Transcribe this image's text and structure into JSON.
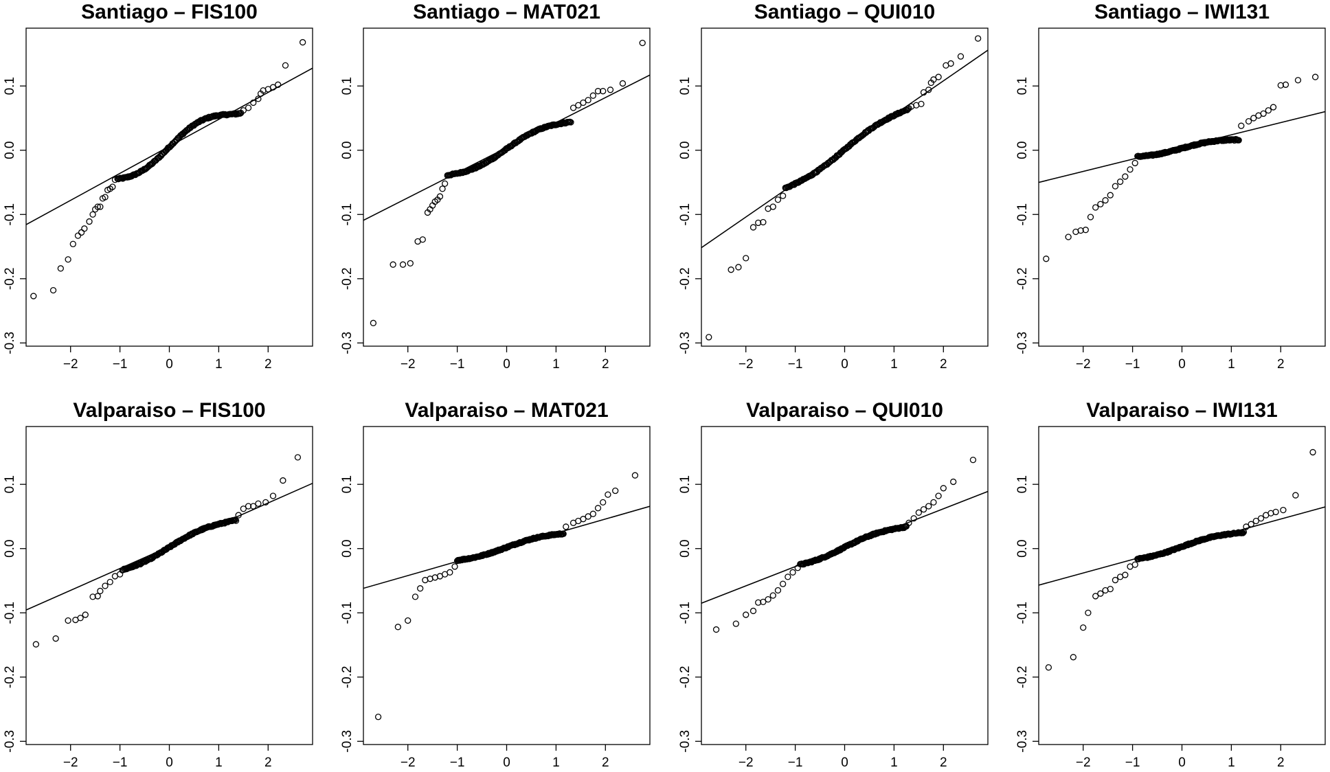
{
  "chart_data": {
    "type": "scatter",
    "layout": {
      "rows": 2,
      "cols": 4
    },
    "shared_axes": {
      "xlim": [
        -2.9,
        2.9
      ],
      "ylim": [
        -0.305,
        0.19
      ],
      "x_ticks": [
        -2,
        -1,
        0,
        1,
        2
      ],
      "x_tick_labels": [
        "−2",
        "−1",
        "0",
        "1",
        "2"
      ],
      "y_ticks": [
        0.1,
        0.0,
        -0.1,
        -0.2,
        -0.3
      ],
      "y_tick_labels": [
        "0.1",
        "0.0",
        "-0.1",
        "-0.2",
        "-0.3"
      ],
      "grid": false,
      "legend": "none"
    },
    "panels": [
      {
        "title": "Santiago – FIS100",
        "line": {
          "intercept": 0.006,
          "slope": 0.042
        },
        "low_tail": [
          [
            -2.75,
            -0.227
          ],
          [
            -2.35,
            -0.218
          ],
          [
            -2.2,
            -0.184
          ],
          [
            -2.05,
            -0.17
          ],
          [
            -1.95,
            -0.146
          ],
          [
            -1.85,
            -0.133
          ],
          [
            -1.78,
            -0.128
          ],
          [
            -1.72,
            -0.122
          ],
          [
            -1.62,
            -0.111
          ],
          [
            -1.55,
            -0.1
          ],
          [
            -1.5,
            -0.092
          ],
          [
            -1.45,
            -0.088
          ],
          [
            -1.4,
            -0.088
          ],
          [
            -1.35,
            -0.075
          ],
          [
            -1.3,
            -0.073
          ],
          [
            -1.25,
            -0.062
          ],
          [
            -1.2,
            -0.06
          ],
          [
            -1.15,
            -0.057
          ],
          [
            -1.1,
            -0.046
          ]
        ],
        "high_tail": [
          [
            1.5,
            0.062
          ],
          [
            1.6,
            0.066
          ],
          [
            1.7,
            0.074
          ],
          [
            1.8,
            0.08
          ],
          [
            1.85,
            0.088
          ],
          [
            1.9,
            0.093
          ],
          [
            2.0,
            0.095
          ],
          [
            2.1,
            0.098
          ],
          [
            2.2,
            0.102
          ],
          [
            2.35,
            0.132
          ],
          [
            2.7,
            0.168
          ]
        ],
        "core": {
          "x_from": -1.05,
          "x_to": 1.45,
          "slope": 0.042,
          "intercept": 0.005,
          "wave": 0.014
        }
      },
      {
        "title": "Santiago – MAT021",
        "line": {
          "intercept": 0.004,
          "slope": 0.039
        },
        "low_tail": [
          [
            -2.7,
            -0.269
          ],
          [
            -2.3,
            -0.178
          ],
          [
            -2.1,
            -0.178
          ],
          [
            -1.95,
            -0.176
          ],
          [
            -1.8,
            -0.142
          ],
          [
            -1.7,
            -0.139
          ],
          [
            -1.6,
            -0.097
          ],
          [
            -1.55,
            -0.092
          ],
          [
            -1.5,
            -0.086
          ],
          [
            -1.45,
            -0.08
          ],
          [
            -1.4,
            -0.077
          ],
          [
            -1.35,
            -0.072
          ],
          [
            -1.3,
            -0.06
          ],
          [
            -1.25,
            -0.052
          ]
        ],
        "high_tail": [
          [
            1.35,
            0.066
          ],
          [
            1.45,
            0.07
          ],
          [
            1.55,
            0.074
          ],
          [
            1.65,
            0.078
          ],
          [
            1.75,
            0.085
          ],
          [
            1.85,
            0.092
          ],
          [
            1.95,
            0.092
          ],
          [
            2.1,
            0.094
          ],
          [
            2.35,
            0.104
          ],
          [
            2.75,
            0.167
          ]
        ],
        "core": {
          "x_from": -1.2,
          "x_to": 1.3,
          "slope": 0.034,
          "intercept": 0.002,
          "wave": 0.008
        }
      },
      {
        "title": "Santiago – QUI010",
        "line": {
          "intercept": 0.002,
          "slope": 0.053
        },
        "low_tail": [
          [
            -2.75,
            -0.291
          ],
          [
            -2.3,
            -0.186
          ],
          [
            -2.15,
            -0.182
          ],
          [
            -2.0,
            -0.168
          ],
          [
            -1.85,
            -0.12
          ],
          [
            -1.75,
            -0.113
          ],
          [
            -1.65,
            -0.112
          ],
          [
            -1.55,
            -0.091
          ],
          [
            -1.45,
            -0.088
          ],
          [
            -1.35,
            -0.077
          ],
          [
            -1.25,
            -0.071
          ]
        ],
        "high_tail": [
          [
            1.35,
            0.068
          ],
          [
            1.45,
            0.07
          ],
          [
            1.55,
            0.072
          ],
          [
            1.6,
            0.09
          ],
          [
            1.7,
            0.094
          ],
          [
            1.75,
            0.105
          ],
          [
            1.8,
            0.11
          ],
          [
            1.9,
            0.114
          ],
          [
            2.05,
            0.132
          ],
          [
            2.15,
            0.135
          ],
          [
            2.35,
            0.146
          ],
          [
            2.7,
            0.174
          ]
        ],
        "core": {
          "x_from": -1.2,
          "x_to": 1.3,
          "slope": 0.05,
          "intercept": 0.001,
          "wave": 0.006
        }
      },
      {
        "title": "Santiago – IWI131",
        "line": {
          "intercept": 0.005,
          "slope": 0.019
        },
        "low_tail": [
          [
            -2.75,
            -0.169
          ],
          [
            -2.3,
            -0.135
          ],
          [
            -2.15,
            -0.127
          ],
          [
            -2.05,
            -0.125
          ],
          [
            -1.95,
            -0.124
          ],
          [
            -1.85,
            -0.104
          ],
          [
            -1.75,
            -0.089
          ],
          [
            -1.65,
            -0.084
          ],
          [
            -1.55,
            -0.078
          ],
          [
            -1.45,
            -0.07
          ],
          [
            -1.35,
            -0.056
          ],
          [
            -1.25,
            -0.049
          ],
          [
            -1.15,
            -0.041
          ],
          [
            -1.05,
            -0.03
          ],
          [
            -0.95,
            -0.02
          ]
        ],
        "high_tail": [
          [
            1.2,
            0.038
          ],
          [
            1.35,
            0.045
          ],
          [
            1.45,
            0.05
          ],
          [
            1.55,
            0.054
          ],
          [
            1.65,
            0.057
          ],
          [
            1.75,
            0.062
          ],
          [
            1.85,
            0.067
          ],
          [
            2.0,
            0.101
          ],
          [
            2.1,
            0.102
          ],
          [
            2.35,
            0.109
          ],
          [
            2.7,
            0.114
          ]
        ],
        "core": {
          "x_from": -0.9,
          "x_to": 1.15,
          "slope": 0.011,
          "intercept": 0.003,
          "wave": 0.004
        }
      },
      {
        "title": "Valparaiso – FIS100",
        "line": {
          "intercept": 0.003,
          "slope": 0.034
        },
        "low_tail": [
          [
            -2.7,
            -0.149
          ],
          [
            -2.3,
            -0.14
          ],
          [
            -2.05,
            -0.112
          ],
          [
            -1.9,
            -0.111
          ],
          [
            -1.8,
            -0.108
          ],
          [
            -1.7,
            -0.103
          ],
          [
            -1.55,
            -0.075
          ],
          [
            -1.45,
            -0.074
          ],
          [
            -1.4,
            -0.066
          ],
          [
            -1.3,
            -0.058
          ],
          [
            -1.2,
            -0.052
          ],
          [
            -1.1,
            -0.043
          ],
          [
            -1.0,
            -0.04
          ]
        ],
        "high_tail": [
          [
            1.4,
            0.052
          ],
          [
            1.5,
            0.062
          ],
          [
            1.6,
            0.066
          ],
          [
            1.7,
            0.066
          ],
          [
            1.8,
            0.07
          ],
          [
            1.95,
            0.072
          ],
          [
            2.1,
            0.082
          ],
          [
            2.3,
            0.106
          ],
          [
            2.6,
            0.142
          ]
        ],
        "core": {
          "x_from": -0.95,
          "x_to": 1.35,
          "slope": 0.033,
          "intercept": 0.002,
          "wave": 0.006
        }
      },
      {
        "title": "Valparaiso – MAT021",
        "line": {
          "intercept": 0.002,
          "slope": 0.022
        },
        "low_tail": [
          [
            -2.6,
            -0.262
          ],
          [
            -2.2,
            -0.122
          ],
          [
            -2.0,
            -0.112
          ],
          [
            -1.85,
            -0.075
          ],
          [
            -1.75,
            -0.062
          ],
          [
            -1.65,
            -0.049
          ],
          [
            -1.55,
            -0.047
          ],
          [
            -1.45,
            -0.045
          ],
          [
            -1.35,
            -0.043
          ],
          [
            -1.25,
            -0.04
          ],
          [
            -1.15,
            -0.037
          ],
          [
            -1.05,
            -0.028
          ]
        ],
        "high_tail": [
          [
            1.2,
            0.034
          ],
          [
            1.35,
            0.04
          ],
          [
            1.45,
            0.043
          ],
          [
            1.55,
            0.046
          ],
          [
            1.65,
            0.05
          ],
          [
            1.75,
            0.054
          ],
          [
            1.85,
            0.063
          ],
          [
            1.95,
            0.072
          ],
          [
            2.05,
            0.084
          ],
          [
            2.2,
            0.09
          ],
          [
            2.6,
            0.114
          ]
        ],
        "core": {
          "x_from": -1.0,
          "x_to": 1.15,
          "slope": 0.018,
          "intercept": 0.002,
          "wave": 0.004
        }
      },
      {
        "title": "Valparaiso – QUI010",
        "line": {
          "intercept": 0.002,
          "slope": 0.03
        },
        "low_tail": [
          [
            -2.6,
            -0.126
          ],
          [
            -2.2,
            -0.117
          ],
          [
            -2.0,
            -0.103
          ],
          [
            -1.85,
            -0.097
          ],
          [
            -1.75,
            -0.084
          ],
          [
            -1.65,
            -0.083
          ],
          [
            -1.55,
            -0.079
          ],
          [
            -1.45,
            -0.073
          ],
          [
            -1.35,
            -0.065
          ],
          [
            -1.25,
            -0.055
          ],
          [
            -1.15,
            -0.044
          ],
          [
            -1.05,
            -0.037
          ],
          [
            -0.95,
            -0.03
          ]
        ],
        "high_tail": [
          [
            1.3,
            0.04
          ],
          [
            1.4,
            0.047
          ],
          [
            1.5,
            0.056
          ],
          [
            1.6,
            0.061
          ],
          [
            1.7,
            0.066
          ],
          [
            1.8,
            0.072
          ],
          [
            1.9,
            0.082
          ],
          [
            2.0,
            0.094
          ],
          [
            2.2,
            0.104
          ],
          [
            2.6,
            0.138
          ]
        ],
        "core": {
          "x_from": -0.9,
          "x_to": 1.25,
          "slope": 0.026,
          "intercept": 0.002,
          "wave": 0.005
        }
      },
      {
        "title": "Valparaiso – IWI131",
        "line": {
          "intercept": 0.004,
          "slope": 0.021
        },
        "low_tail": [
          [
            -2.7,
            -0.185
          ],
          [
            -2.2,
            -0.169
          ],
          [
            -2.0,
            -0.123
          ],
          [
            -1.9,
            -0.1
          ],
          [
            -1.75,
            -0.074
          ],
          [
            -1.65,
            -0.07
          ],
          [
            -1.55,
            -0.065
          ],
          [
            -1.45,
            -0.063
          ],
          [
            -1.35,
            -0.049
          ],
          [
            -1.25,
            -0.044
          ],
          [
            -1.15,
            -0.041
          ],
          [
            -1.05,
            -0.028
          ],
          [
            -0.95,
            -0.025
          ]
        ],
        "high_tail": [
          [
            1.3,
            0.034
          ],
          [
            1.4,
            0.038
          ],
          [
            1.5,
            0.043
          ],
          [
            1.6,
            0.047
          ],
          [
            1.7,
            0.052
          ],
          [
            1.8,
            0.055
          ],
          [
            1.9,
            0.057
          ],
          [
            2.05,
            0.06
          ],
          [
            2.3,
            0.083
          ],
          [
            2.65,
            0.15
          ]
        ],
        "core": {
          "x_from": -0.9,
          "x_to": 1.25,
          "slope": 0.018,
          "intercept": 0.003,
          "wave": 0.004
        }
      }
    ]
  }
}
